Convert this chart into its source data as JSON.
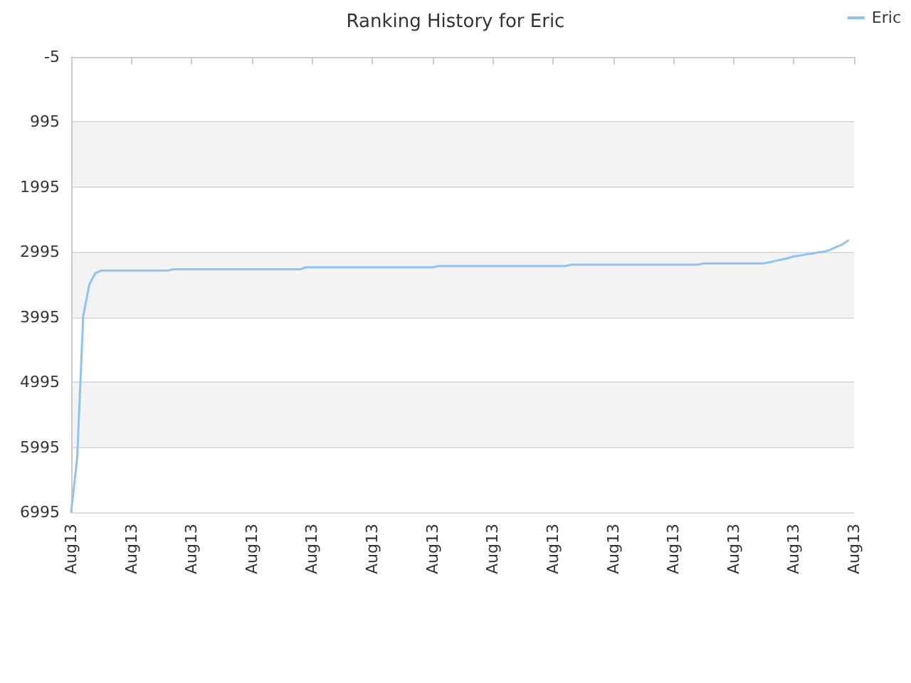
{
  "chart_data": {
    "type": "line",
    "title": "Ranking History for Eric",
    "categories": [
      "Aug13",
      null,
      null,
      null,
      null,
      null,
      null,
      null,
      null,
      null,
      "Aug13",
      null,
      null,
      null,
      null,
      null,
      null,
      null,
      null,
      null,
      "Aug13",
      null,
      null,
      null,
      null,
      null,
      null,
      null,
      null,
      null,
      "Aug13",
      null,
      null,
      null,
      null,
      null,
      null,
      null,
      null,
      null,
      "Aug13",
      null,
      null,
      null,
      null,
      null,
      null,
      null,
      null,
      null,
      "Aug13",
      null,
      null,
      null,
      null,
      null,
      null,
      null,
      null,
      null,
      "Aug13",
      null,
      null,
      null,
      null,
      null,
      null,
      null,
      null,
      null,
      "Aug13",
      null,
      null,
      null,
      null,
      null,
      null,
      null,
      null,
      null,
      "Aug13",
      null,
      null,
      null,
      null,
      null,
      null,
      null,
      null,
      null,
      "Aug13",
      null,
      null,
      null,
      null,
      null,
      null,
      null,
      null,
      null,
      "Aug13",
      null,
      null,
      null,
      null,
      null,
      null,
      null,
      null,
      null,
      "Aug13",
      null,
      null,
      null,
      null,
      null,
      null,
      null,
      null,
      null,
      "Aug13",
      null,
      null,
      null,
      null,
      null,
      null,
      null,
      null,
      null,
      "Aug13"
    ],
    "series": [
      {
        "name": "Eric",
        "color": "#90c3f0",
        "values": [
          6990,
          6160,
          3980,
          3500,
          3320,
          3280,
          3280,
          3280,
          3280,
          3280,
          3280,
          3280,
          3280,
          3280,
          3280,
          3280,
          3280,
          3260,
          3260,
          3260,
          3260,
          3260,
          3260,
          3260,
          3260,
          3260,
          3260,
          3260,
          3260,
          3260,
          3260,
          3260,
          3260,
          3260,
          3260,
          3260,
          3260,
          3260,
          3260,
          3230,
          3230,
          3230,
          3230,
          3230,
          3230,
          3230,
          3230,
          3230,
          3230,
          3230,
          3230,
          3230,
          3230,
          3230,
          3230,
          3230,
          3230,
          3230,
          3230,
          3230,
          3230,
          3210,
          3210,
          3210,
          3210,
          3210,
          3210,
          3210,
          3210,
          3210,
          3210,
          3210,
          3210,
          3210,
          3210,
          3210,
          3210,
          3210,
          3210,
          3210,
          3210,
          3210,
          3210,
          3190,
          3190,
          3190,
          3190,
          3190,
          3190,
          3190,
          3190,
          3190,
          3190,
          3190,
          3190,
          3190,
          3190,
          3190,
          3190,
          3190,
          3190,
          3190,
          3190,
          3190,
          3190,
          3170,
          3170,
          3170,
          3170,
          3170,
          3170,
          3170,
          3170,
          3170,
          3170,
          3170,
          3150,
          3130,
          3110,
          3090,
          3060,
          3050,
          3030,
          3020,
          3000,
          2990,
          2960,
          2920,
          2880,
          2820,
          null
        ]
      }
    ],
    "ylim": [
      6995,
      -5
    ],
    "yticks": [
      -5,
      995,
      1995,
      2995,
      3995,
      4995,
      5995,
      6995
    ],
    "grid": "y",
    "legend": "top right",
    "marker": "none",
    "line_style": "solid"
  }
}
